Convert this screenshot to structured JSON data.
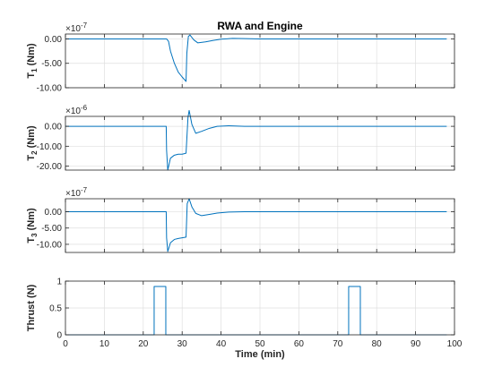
{
  "figure": {
    "title": "RWA and Engine",
    "xlabel": "Time (min)"
  },
  "colors": {
    "line": "#0072bd",
    "axis": "#262626",
    "grid": "#dfdfdf",
    "background": "#ffffff",
    "frame": "#f0f0f0"
  },
  "chart_data": [
    {
      "type": "line",
      "title": "RWA and Engine",
      "xlabel": "",
      "ylabel_main": "T",
      "ylabel_sub": "1",
      "ylabel_unit": " (Nm)",
      "multiplier_base": "×10",
      "multiplier_exp": "-7",
      "xlim": [
        0,
        100
      ],
      "ylim": [
        -10,
        1
      ],
      "yticks": [
        0,
        -5,
        -10
      ],
      "yticklabels": [
        "0.00",
        "-5.00",
        "-10.00"
      ],
      "xticks": [
        0,
        10,
        20,
        30,
        40,
        50,
        60,
        70,
        80,
        90,
        100
      ],
      "show_xticklabels": false,
      "grid": true,
      "series": [
        {
          "x": [
            0,
            26,
            26.5,
            27,
            28,
            29,
            30,
            31,
            31.2,
            31.6,
            32,
            33,
            34,
            36,
            38,
            40,
            43,
            46,
            50,
            60,
            80,
            98
          ],
          "y": [
            0,
            0,
            -0.5,
            -2.5,
            -5.0,
            -6.8,
            -7.8,
            -8.7,
            -3.0,
            0.5,
            0.8,
            -0.2,
            -0.8,
            -0.6,
            -0.3,
            -0.05,
            0.1,
            0.05,
            0,
            0,
            0,
            0
          ]
        }
      ]
    },
    {
      "type": "line",
      "xlabel": "",
      "ylabel_main": "T",
      "ylabel_sub": "2",
      "ylabel_unit": " (Nm)",
      "multiplier_base": "×10",
      "multiplier_exp": "-6",
      "xlim": [
        0,
        100
      ],
      "ylim": [
        -22,
        5
      ],
      "yticks": [
        0,
        -10,
        -20
      ],
      "yticklabels": [
        "0.00",
        "-10.00",
        "-20.00"
      ],
      "xticks": [
        0,
        10,
        20,
        30,
        40,
        50,
        60,
        70,
        80,
        90,
        100
      ],
      "show_xticklabels": false,
      "grid": true,
      "series": [
        {
          "x": [
            0,
            25.9,
            26,
            26.3,
            27,
            28,
            29,
            30,
            31,
            31.5,
            31.8,
            32.5,
            33.5,
            35,
            37,
            39,
            42,
            46,
            50,
            60,
            80,
            98
          ],
          "y": [
            0,
            0,
            -12,
            -22,
            -16,
            -14.5,
            -14,
            -14,
            -13.5,
            4.5,
            8,
            1,
            -3.5,
            -2.5,
            -1,
            0,
            0.3,
            0,
            0,
            0,
            0,
            0
          ]
        }
      ]
    },
    {
      "type": "line",
      "xlabel": "",
      "ylabel_main": "T",
      "ylabel_sub": "3",
      "ylabel_unit": " (Nm)",
      "multiplier_base": "×10",
      "multiplier_exp": "-7",
      "xlim": [
        0,
        100
      ],
      "ylim": [
        -12.5,
        4
      ],
      "yticks": [
        0,
        -5,
        -10
      ],
      "yticklabels": [
        "0.00",
        "-5.00",
        "-10.00"
      ],
      "xticks": [
        0,
        10,
        20,
        30,
        40,
        50,
        60,
        70,
        80,
        90,
        100
      ],
      "show_xticklabels": false,
      "grid": true,
      "series": [
        {
          "x": [
            0,
            25.9,
            26,
            26.3,
            27,
            28,
            29,
            30,
            31,
            31.3,
            31.8,
            32.5,
            33.5,
            35,
            37,
            39,
            42,
            46,
            50,
            55,
            60,
            80,
            98
          ],
          "y": [
            0,
            0,
            -8,
            -12.2,
            -9.5,
            -8.5,
            -8.2,
            -8,
            -7.8,
            2.5,
            4,
            1.5,
            -0.5,
            -1.2,
            -0.8,
            -0.4,
            -0.1,
            0,
            0,
            0,
            0,
            0,
            0
          ]
        }
      ]
    },
    {
      "type": "line",
      "ylabel_main": "Thrust",
      "ylabel_sub": "",
      "ylabel_unit": " (N)",
      "xlabel": "Time (min)",
      "xlim": [
        0,
        100
      ],
      "ylim": [
        0,
        1
      ],
      "yticks": [
        0,
        0.5,
        1
      ],
      "yticklabels": [
        "0",
        "0.5",
        "1"
      ],
      "xticks": [
        0,
        10,
        20,
        30,
        40,
        50,
        60,
        70,
        80,
        90,
        100
      ],
      "xticklabels": [
        "0",
        "10",
        "20",
        "30",
        "40",
        "50",
        "60",
        "70",
        "80",
        "90",
        "100"
      ],
      "show_xticklabels": true,
      "grid": true,
      "series": [
        {
          "x": [
            0,
            22.8,
            22.8,
            25.8,
            25.8,
            72.8,
            72.8,
            75.8,
            75.8,
            98
          ],
          "y": [
            0,
            0,
            0.9,
            0.9,
            0,
            0,
            0.9,
            0.9,
            0,
            0
          ]
        }
      ]
    }
  ]
}
